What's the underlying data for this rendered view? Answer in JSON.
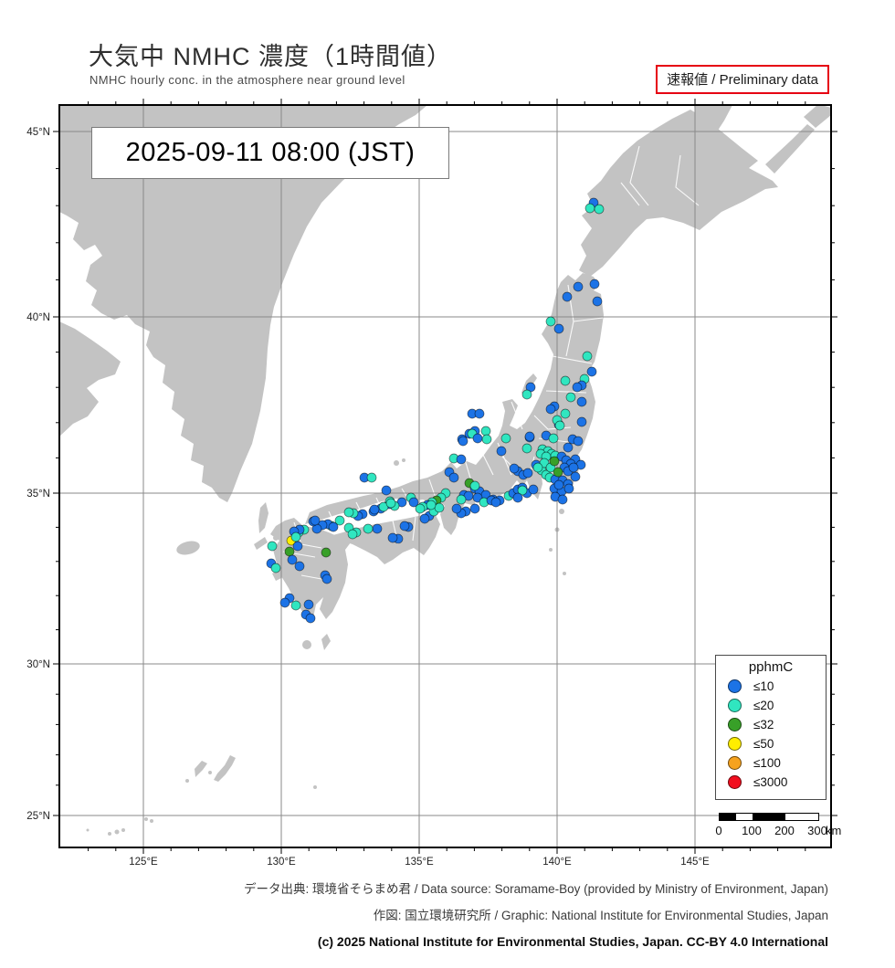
{
  "title": {
    "main": "大気中 NMHC 濃度（1時間値）",
    "sub": "NMHC hourly conc. in the atmosphere near ground level"
  },
  "preliminary_label": "速報値 / Preliminary data",
  "timestamp": "2025-09-11  08:00 (JST)",
  "map": {
    "lat_labels": [
      "45°N",
      "40°N",
      "35°N",
      "30°N",
      "25°N"
    ],
    "lon_labels": [
      "125°E",
      "130°E",
      "135°E",
      "140°E",
      "145°E"
    ]
  },
  "legend": {
    "title": "pphmC",
    "entries": [
      {
        "label": "≤10",
        "color": "#1c73e6"
      },
      {
        "label": "≤20",
        "color": "#30e6c0"
      },
      {
        "label": "≤32",
        "color": "#38a028"
      },
      {
        "label": "≤50",
        "color": "#ffee00"
      },
      {
        "label": "≤100",
        "color": "#f6a21e"
      },
      {
        "label": "≤3000",
        "color": "#f10e1e"
      }
    ]
  },
  "scalebar": {
    "ticks": [
      "0",
      "100",
      "200",
      "300"
    ],
    "unit": "km"
  },
  "footer": {
    "line1": "データ出典: 環境省そらまめ君 / Data source: Soramame-Boy (provided by Ministry of Environment, Japan)",
    "line2": "作図: 国立環境研究所 / Graphic: National Institute for Environmental Studies, Japan",
    "line3": "(c) 2025 National Institute for Environmental Studies, Japan. CC-BY 4.0 International"
  },
  "station_colors": {
    "b": "#1c73e6",
    "c": "#30e6c0",
    "g": "#38a028",
    "y": "#ffee00"
  },
  "stations": [
    [
      650,
      222,
      "b"
    ],
    [
      646,
      228,
      "c"
    ],
    [
      656,
      229,
      "c"
    ],
    [
      633,
      314,
      "b"
    ],
    [
      621,
      325,
      "b"
    ],
    [
      651,
      311,
      "b"
    ],
    [
      654,
      330,
      "b"
    ],
    [
      603,
      352,
      "c"
    ],
    [
      612,
      360,
      "b"
    ],
    [
      643,
      390,
      "c"
    ],
    [
      648,
      407,
      "b"
    ],
    [
      640,
      415,
      "c"
    ],
    [
      637,
      422,
      "b"
    ],
    [
      619,
      417,
      "c"
    ],
    [
      581,
      424,
      "b"
    ],
    [
      577,
      432,
      "c"
    ],
    [
      632,
      424,
      "b"
    ],
    [
      625,
      435,
      "c"
    ],
    [
      637,
      440,
      "b"
    ],
    [
      607,
      445,
      "b"
    ],
    [
      619,
      453,
      "c"
    ],
    [
      637,
      462,
      "b"
    ],
    [
      612,
      465,
      "b"
    ],
    [
      603,
      448,
      "b"
    ],
    [
      610,
      460,
      "c"
    ],
    [
      613,
      466,
      "c"
    ],
    [
      598,
      477,
      "b"
    ],
    [
      580,
      479,
      "b"
    ],
    [
      606,
      480,
      "c"
    ],
    [
      627,
      481,
      "b"
    ],
    [
      633,
      483,
      "b"
    ],
    [
      622,
      490,
      "b"
    ],
    [
      587,
      509,
      "b"
    ],
    [
      567,
      516,
      "b"
    ],
    [
      573,
      520,
      "b"
    ],
    [
      578,
      518,
      "b"
    ],
    [
      630,
      503,
      "b"
    ],
    [
      636,
      509,
      "b"
    ],
    [
      594,
      492,
      "c"
    ],
    [
      600,
      494,
      "c"
    ],
    [
      592,
      497,
      "c"
    ],
    [
      604,
      497,
      "c"
    ],
    [
      598,
      500,
      "c"
    ],
    [
      608,
      499,
      "c"
    ],
    [
      593,
      515,
      "c"
    ],
    [
      598,
      520,
      "c"
    ],
    [
      602,
      523,
      "c"
    ],
    [
      596,
      507,
      "c"
    ],
    [
      589,
      512,
      "c"
    ],
    [
      603,
      512,
      "c"
    ],
    [
      615,
      500,
      "b"
    ],
    [
      620,
      504,
      "b"
    ],
    [
      625,
      508,
      "b"
    ],
    [
      618,
      512,
      "b"
    ],
    [
      622,
      516,
      "b"
    ],
    [
      628,
      512,
      "b"
    ],
    [
      608,
      525,
      "b"
    ],
    [
      616,
      526,
      "b"
    ],
    [
      622,
      530,
      "b"
    ],
    [
      630,
      522,
      "b"
    ],
    [
      607,
      535,
      "b"
    ],
    [
      615,
      538,
      "b"
    ],
    [
      623,
      535,
      "b"
    ],
    [
      608,
      544,
      "b"
    ],
    [
      616,
      547,
      "b"
    ],
    [
      612,
      531,
      "b"
    ],
    [
      607,
      505,
      "g"
    ],
    [
      611,
      517,
      "g"
    ],
    [
      554,
      480,
      "c"
    ],
    [
      549,
      494,
      "b"
    ],
    [
      563,
      513,
      "b"
    ],
    [
      580,
      478,
      "b"
    ],
    [
      577,
      491,
      "c"
    ],
    [
      532,
      472,
      "c"
    ],
    [
      520,
      472,
      "b"
    ],
    [
      514,
      475,
      "b"
    ],
    [
      506,
      481,
      "b"
    ],
    [
      533,
      481,
      "c"
    ],
    [
      517,
      453,
      "b"
    ],
    [
      525,
      453,
      "b"
    ],
    [
      520,
      535,
      "b"
    ],
    [
      525,
      538,
      "b"
    ],
    [
      532,
      542,
      "b"
    ],
    [
      540,
      547,
      "b"
    ],
    [
      547,
      548,
      "b"
    ],
    [
      557,
      543,
      "c"
    ],
    [
      562,
      540,
      "b"
    ],
    [
      567,
      536,
      "b"
    ],
    [
      572,
      534,
      "b"
    ],
    [
      577,
      540,
      "b"
    ],
    [
      584,
      536,
      "b"
    ],
    [
      572,
      537,
      "c"
    ],
    [
      567,
      545,
      "b"
    ],
    [
      517,
      475,
      "c"
    ],
    [
      523,
      480,
      "b"
    ],
    [
      507,
      483,
      "b"
    ],
    [
      497,
      502,
      "c"
    ],
    [
      505,
      503,
      "b"
    ],
    [
      492,
      517,
      "b"
    ],
    [
      497,
      523,
      "b"
    ],
    [
      514,
      529,
      "g"
    ],
    [
      520,
      532,
      "c"
    ],
    [
      508,
      542,
      "b"
    ],
    [
      513,
      543,
      "b"
    ],
    [
      505,
      547,
      "c"
    ],
    [
      488,
      540,
      "c"
    ],
    [
      483,
      545,
      "c"
    ],
    [
      478,
      548,
      "g"
    ],
    [
      473,
      550,
      "c"
    ],
    [
      468,
      553,
      "b"
    ],
    [
      463,
      555,
      "c"
    ],
    [
      470,
      565,
      "b"
    ],
    [
      465,
      568,
      "b"
    ],
    [
      475,
      560,
      "c"
    ],
    [
      481,
      556,
      "c"
    ],
    [
      523,
      545,
      "b"
    ],
    [
      530,
      550,
      "c"
    ],
    [
      538,
      548,
      "b"
    ],
    [
      543,
      550,
      "b"
    ],
    [
      520,
      557,
      "b"
    ],
    [
      510,
      560,
      "b"
    ],
    [
      505,
      562,
      "b"
    ],
    [
      500,
      557,
      "b"
    ],
    [
      447,
      577,
      "b"
    ],
    [
      450,
      545,
      "c"
    ],
    [
      440,
      550,
      "b"
    ],
    [
      432,
      554,
      "c"
    ],
    [
      426,
      552,
      "b"
    ],
    [
      453,
      550,
      "b"
    ],
    [
      460,
      557,
      "c"
    ],
    [
      472,
      553,
      "c"
    ],
    [
      399,
      523,
      "b"
    ],
    [
      407,
      523,
      "c"
    ],
    [
      423,
      537,
      "b"
    ],
    [
      427,
      549,
      "c"
    ],
    [
      417,
      557,
      "b"
    ],
    [
      409,
      560,
      "b"
    ],
    [
      397,
      563,
      "b"
    ],
    [
      392,
      565,
      "b"
    ],
    [
      387,
      562,
      "c"
    ],
    [
      382,
      561,
      "c"
    ],
    [
      372,
      570,
      "c"
    ],
    [
      363,
      576,
      "c"
    ],
    [
      359,
      574,
      "b"
    ],
    [
      353,
      575,
      "b"
    ],
    [
      347,
      579,
      "b"
    ],
    [
      343,
      571,
      "b"
    ],
    [
      410,
      558,
      "b"
    ],
    [
      420,
      555,
      "c"
    ],
    [
      428,
      551,
      "c"
    ],
    [
      436,
      590,
      "b"
    ],
    [
      430,
      589,
      "b"
    ],
    [
      443,
      576,
      "b"
    ],
    [
      413,
      579,
      "b"
    ],
    [
      403,
      579,
      "c"
    ],
    [
      390,
      583,
      "c"
    ],
    [
      333,
      580,
      "c"
    ],
    [
      327,
      583,
      "c"
    ],
    [
      328,
      580,
      "b"
    ],
    [
      322,
      582,
      "b"
    ],
    [
      319,
      592,
      "y"
    ],
    [
      324,
      588,
      "c"
    ],
    [
      326,
      598,
      "b"
    ],
    [
      317,
      604,
      "g"
    ],
    [
      298,
      598,
      "c"
    ],
    [
      297,
      617,
      "b"
    ],
    [
      302,
      622,
      "c"
    ],
    [
      320,
      613,
      "b"
    ],
    [
      328,
      620,
      "b"
    ],
    [
      345,
      570,
      "b"
    ],
    [
      365,
      577,
      "b"
    ],
    [
      357,
      605,
      "g"
    ],
    [
      382,
      578,
      "c"
    ],
    [
      386,
      585,
      "c"
    ],
    [
      356,
      630,
      "b"
    ],
    [
      358,
      634,
      "b"
    ],
    [
      317,
      655,
      "b"
    ],
    [
      312,
      660,
      "b"
    ],
    [
      324,
      663,
      "c"
    ],
    [
      338,
      662,
      "b"
    ],
    [
      335,
      673,
      "b"
    ],
    [
      340,
      677,
      "b"
    ]
  ]
}
